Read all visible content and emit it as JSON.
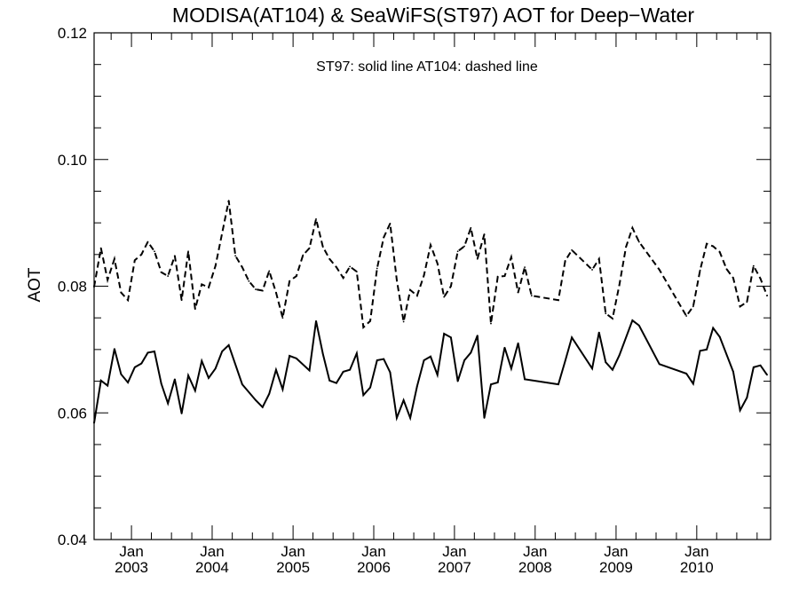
{
  "chart_data": {
    "type": "line",
    "title": "MODISA(AT104) & SeaWiFS(ST97)  AOT for Deep−Water",
    "annotation": "ST97: solid line   AT104: dashed line",
    "xlabel": "",
    "ylabel": "AOT",
    "xlim": [
      "2002-07-16",
      "2010-12-01"
    ],
    "ylim": [
      0.04,
      0.12
    ],
    "yticks": [
      "0.04",
      "0.06",
      "0.08",
      "0.10",
      "0.12"
    ],
    "xticks": [
      {
        "date": "2003-01-01",
        "month": "Jan",
        "year": "2003"
      },
      {
        "date": "2004-01-01",
        "month": "Jan",
        "year": "2004"
      },
      {
        "date": "2005-01-01",
        "month": "Jan",
        "year": "2005"
      },
      {
        "date": "2006-01-01",
        "month": "Jan",
        "year": "2006"
      },
      {
        "date": "2007-01-01",
        "month": "Jan",
        "year": "2007"
      },
      {
        "date": "2008-01-01",
        "month": "Jan",
        "year": "2008"
      },
      {
        "date": "2009-01-01",
        "month": "Jan",
        "year": "2009"
      },
      {
        "date": "2010-01-01",
        "month": "Jan",
        "year": "2010"
      }
    ],
    "grid": false,
    "series": [
      {
        "name": "ST97",
        "style": "solid",
        "color": "#000000",
        "points": [
          [
            "2002-07-16",
            0.0584
          ],
          [
            "2002-08-16",
            0.0651
          ],
          [
            "2002-09-15",
            0.0643
          ],
          [
            "2002-10-16",
            0.0701
          ],
          [
            "2002-11-15",
            0.0661
          ],
          [
            "2002-12-16",
            0.0648
          ],
          [
            "2003-01-16",
            0.0672
          ],
          [
            "2003-02-15",
            0.0678
          ],
          [
            "2003-03-16",
            0.0695
          ],
          [
            "2003-04-15",
            0.0697
          ],
          [
            "2003-05-16",
            0.0646
          ],
          [
            "2003-06-15",
            0.0615
          ],
          [
            "2003-07-16",
            0.0653
          ],
          [
            "2003-08-16",
            0.0599
          ],
          [
            "2003-09-15",
            0.0659
          ],
          [
            "2003-10-16",
            0.0635
          ],
          [
            "2003-11-15",
            0.0682
          ],
          [
            "2003-12-16",
            0.0655
          ],
          [
            "2004-01-16",
            0.067
          ],
          [
            "2004-02-15",
            0.0697
          ],
          [
            "2004-03-16",
            0.0707
          ],
          [
            "2004-05-16",
            0.0645
          ],
          [
            "2004-07-16",
            0.062
          ],
          [
            "2004-08-16",
            0.0609
          ],
          [
            "2004-09-15",
            0.063
          ],
          [
            "2004-10-16",
            0.0668
          ],
          [
            "2004-11-15",
            0.0637
          ],
          [
            "2004-12-16",
            0.069
          ],
          [
            "2005-01-16",
            0.0686
          ],
          [
            "2005-03-16",
            0.0667
          ],
          [
            "2005-04-15",
            0.0745
          ],
          [
            "2005-05-16",
            0.0693
          ],
          [
            "2005-06-15",
            0.0651
          ],
          [
            "2005-07-16",
            0.0647
          ],
          [
            "2005-08-16",
            0.0665
          ],
          [
            "2005-09-15",
            0.0668
          ],
          [
            "2005-10-16",
            0.0694
          ],
          [
            "2005-11-15",
            0.0628
          ],
          [
            "2005-12-16",
            0.064
          ],
          [
            "2006-01-16",
            0.0683
          ],
          [
            "2006-02-15",
            0.0685
          ],
          [
            "2006-03-16",
            0.0664
          ],
          [
            "2006-04-15",
            0.0592
          ],
          [
            "2006-05-16",
            0.062
          ],
          [
            "2006-06-15",
            0.0592
          ],
          [
            "2006-07-16",
            0.0642
          ],
          [
            "2006-08-16",
            0.0683
          ],
          [
            "2006-09-15",
            0.0689
          ],
          [
            "2006-10-16",
            0.066
          ],
          [
            "2006-11-15",
            0.0725
          ],
          [
            "2006-12-16",
            0.0719
          ],
          [
            "2007-01-16",
            0.065
          ],
          [
            "2007-02-15",
            0.0683
          ],
          [
            "2007-03-16",
            0.0695
          ],
          [
            "2007-04-15",
            0.0722
          ],
          [
            "2007-05-16",
            0.0592
          ],
          [
            "2007-06-15",
            0.0645
          ],
          [
            "2007-07-16",
            0.0648
          ],
          [
            "2007-08-16",
            0.0703
          ],
          [
            "2007-09-15",
            0.067
          ],
          [
            "2007-10-16",
            0.071
          ],
          [
            "2007-11-15",
            0.0653
          ],
          [
            "2008-04-15",
            0.0645
          ],
          [
            "2008-05-16",
            0.0682
          ],
          [
            "2008-06-15",
            0.0719
          ],
          [
            "2008-09-15",
            0.067
          ],
          [
            "2008-10-16",
            0.0727
          ],
          [
            "2008-11-15",
            0.068
          ],
          [
            "2008-12-16",
            0.0668
          ],
          [
            "2009-01-16",
            0.0691
          ],
          [
            "2009-03-16",
            0.0746
          ],
          [
            "2009-04-15",
            0.0738
          ],
          [
            "2009-07-16",
            0.0677
          ],
          [
            "2009-11-15",
            0.0662
          ],
          [
            "2009-12-16",
            0.0646
          ],
          [
            "2010-01-16",
            0.0698
          ],
          [
            "2010-02-15",
            0.07
          ],
          [
            "2010-03-16",
            0.0734
          ],
          [
            "2010-04-15",
            0.072
          ],
          [
            "2010-06-15",
            0.0665
          ],
          [
            "2010-07-16",
            0.0604
          ],
          [
            "2010-08-16",
            0.0624
          ],
          [
            "2010-09-15",
            0.0672
          ],
          [
            "2010-10-16",
            0.0675
          ],
          [
            "2010-11-15",
            0.066
          ]
        ]
      },
      {
        "name": "AT104",
        "style": "dashed",
        "color": "#000000",
        "points": [
          [
            "2002-07-16",
            0.0799
          ],
          [
            "2002-08-16",
            0.086
          ],
          [
            "2002-09-15",
            0.081
          ],
          [
            "2002-10-16",
            0.0843
          ],
          [
            "2002-11-15",
            0.079
          ],
          [
            "2002-12-16",
            0.0778
          ],
          [
            "2003-01-16",
            0.0841
          ],
          [
            "2003-02-15",
            0.085
          ],
          [
            "2003-03-16",
            0.087
          ],
          [
            "2003-04-15",
            0.0855
          ],
          [
            "2003-05-16",
            0.0822
          ],
          [
            "2003-06-15",
            0.0816
          ],
          [
            "2003-07-16",
            0.0848
          ],
          [
            "2003-08-16",
            0.0778
          ],
          [
            "2003-09-15",
            0.0855
          ],
          [
            "2003-10-16",
            0.0764
          ],
          [
            "2003-11-15",
            0.0803
          ],
          [
            "2003-12-16",
            0.0798
          ],
          [
            "2004-01-16",
            0.0832
          ],
          [
            "2004-03-16",
            0.0935
          ],
          [
            "2004-04-15",
            0.0848
          ],
          [
            "2004-05-16",
            0.083
          ],
          [
            "2004-06-15",
            0.0808
          ],
          [
            "2004-07-16",
            0.0795
          ],
          [
            "2004-08-16",
            0.0793
          ],
          [
            "2004-09-15",
            0.0824
          ],
          [
            "2004-10-16",
            0.079
          ],
          [
            "2004-11-15",
            0.075
          ],
          [
            "2004-12-16",
            0.0808
          ],
          [
            "2005-01-16",
            0.0816
          ],
          [
            "2005-02-15",
            0.0849
          ],
          [
            "2005-03-16",
            0.086
          ],
          [
            "2005-04-15",
            0.0906
          ],
          [
            "2005-05-16",
            0.0862
          ],
          [
            "2005-06-15",
            0.0843
          ],
          [
            "2005-07-16",
            0.083
          ],
          [
            "2005-08-16",
            0.0813
          ],
          [
            "2005-09-15",
            0.0831
          ],
          [
            "2005-10-16",
            0.0823
          ],
          [
            "2005-11-15",
            0.0735
          ],
          [
            "2005-12-16",
            0.0745
          ],
          [
            "2006-01-16",
            0.0828
          ],
          [
            "2006-02-15",
            0.0877
          ],
          [
            "2006-03-16",
            0.0899
          ],
          [
            "2006-04-15",
            0.081
          ],
          [
            "2006-05-16",
            0.0744
          ],
          [
            "2006-06-15",
            0.0794
          ],
          [
            "2006-07-16",
            0.0785
          ],
          [
            "2006-08-16",
            0.0817
          ],
          [
            "2006-09-15",
            0.0865
          ],
          [
            "2006-10-16",
            0.0836
          ],
          [
            "2006-11-15",
            0.0783
          ],
          [
            "2006-12-16",
            0.08
          ],
          [
            "2007-01-16",
            0.0855
          ],
          [
            "2007-02-15",
            0.0863
          ],
          [
            "2007-03-16",
            0.0892
          ],
          [
            "2007-04-15",
            0.0843
          ],
          [
            "2007-05-16",
            0.0882
          ],
          [
            "2007-06-15",
            0.0741
          ],
          [
            "2007-07-16",
            0.0815
          ],
          [
            "2007-08-16",
            0.0816
          ],
          [
            "2007-09-15",
            0.0846
          ],
          [
            "2007-10-16",
            0.079
          ],
          [
            "2007-11-15",
            0.083
          ],
          [
            "2007-12-16",
            0.0785
          ],
          [
            "2008-04-15",
            0.0778
          ],
          [
            "2008-05-16",
            0.084
          ],
          [
            "2008-06-15",
            0.0857
          ],
          [
            "2008-09-15",
            0.0826
          ],
          [
            "2008-10-16",
            0.0843
          ],
          [
            "2008-11-15",
            0.0757
          ],
          [
            "2008-12-16",
            0.0749
          ],
          [
            "2009-01-16",
            0.0802
          ],
          [
            "2009-02-15",
            0.0862
          ],
          [
            "2009-03-16",
            0.0892
          ],
          [
            "2009-04-15",
            0.087
          ],
          [
            "2009-07-16",
            0.0826
          ],
          [
            "2009-11-15",
            0.0753
          ],
          [
            "2009-12-16",
            0.0768
          ],
          [
            "2010-01-16",
            0.0825
          ],
          [
            "2010-02-15",
            0.0867
          ],
          [
            "2010-03-16",
            0.0863
          ],
          [
            "2010-04-15",
            0.0854
          ],
          [
            "2010-05-16",
            0.0827
          ],
          [
            "2010-06-15",
            0.0813
          ],
          [
            "2010-07-16",
            0.0768
          ],
          [
            "2010-08-16",
            0.0775
          ],
          [
            "2010-09-15",
            0.0832
          ],
          [
            "2010-10-16",
            0.0812
          ],
          [
            "2010-11-15",
            0.0785
          ]
        ]
      }
    ]
  }
}
